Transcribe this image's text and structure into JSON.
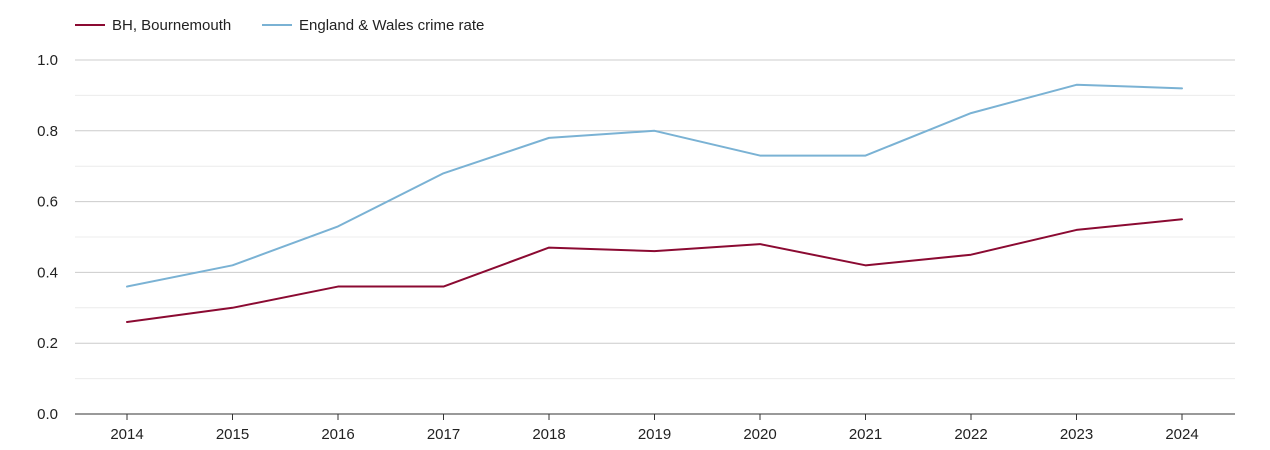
{
  "chart_data": {
    "type": "line",
    "categories": [
      "2014",
      "2015",
      "2016",
      "2017",
      "2018",
      "2019",
      "2020",
      "2021",
      "2022",
      "2023",
      "2024"
    ],
    "series": [
      {
        "name": "BH, Bournemouth",
        "color": "#8b0a32",
        "values": [
          0.26,
          0.3,
          0.36,
          0.36,
          0.47,
          0.46,
          0.48,
          0.42,
          0.45,
          0.52,
          0.55
        ]
      },
      {
        "name": "England & Wales crime rate",
        "color": "#7ab2d4",
        "values": [
          0.36,
          0.42,
          0.53,
          0.68,
          0.78,
          0.8,
          0.73,
          0.73,
          0.85,
          0.93,
          0.92
        ]
      }
    ],
    "y_ticks": [
      "0.0",
      "0.2",
      "0.4",
      "0.6",
      "0.8",
      "1.0"
    ],
    "ylim": [
      0,
      1.0
    ],
    "grid": true,
    "legend_position": "top-left",
    "title": "",
    "xlabel": "",
    "ylabel": ""
  }
}
